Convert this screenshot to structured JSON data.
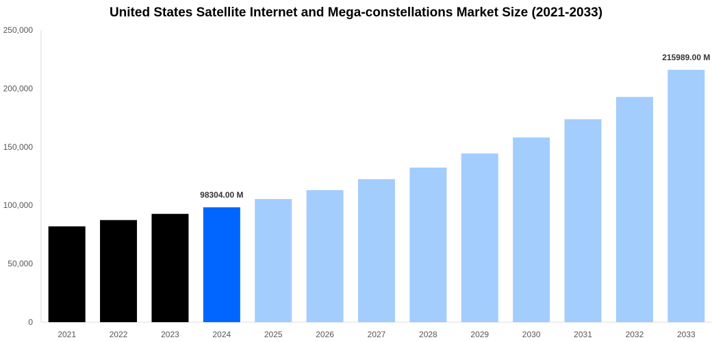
{
  "chart_data": {
    "type": "bar",
    "title": "United States Satellite Internet and Mega-constellations Market Size (2021-2033)",
    "xlabel": "",
    "ylabel": "",
    "categories": [
      "2021",
      "2022",
      "2023",
      "2024",
      "2025",
      "2026",
      "2027",
      "2028",
      "2029",
      "2030",
      "2031",
      "2032",
      "2033"
    ],
    "values": [
      82000,
      87400,
      92700,
      98304,
      105400,
      113000,
      122400,
      132300,
      144400,
      158100,
      173700,
      192800,
      215989
    ],
    "ylim": [
      0,
      250000
    ],
    "yticks": [
      0,
      50000,
      100000,
      150000,
      200000,
      250000
    ],
    "ytick_labels": [
      "0",
      "50,000",
      "100,000",
      "150,000",
      "200,000",
      "250,000"
    ],
    "data_labels": {
      "3": "98304.00 M",
      "12": "215989.00 M"
    },
    "bar_colors": {
      "historical": "#000000",
      "base_year": "#0066ff",
      "forecast": "#a2cdfd"
    },
    "grid": false,
    "legend": "none"
  }
}
